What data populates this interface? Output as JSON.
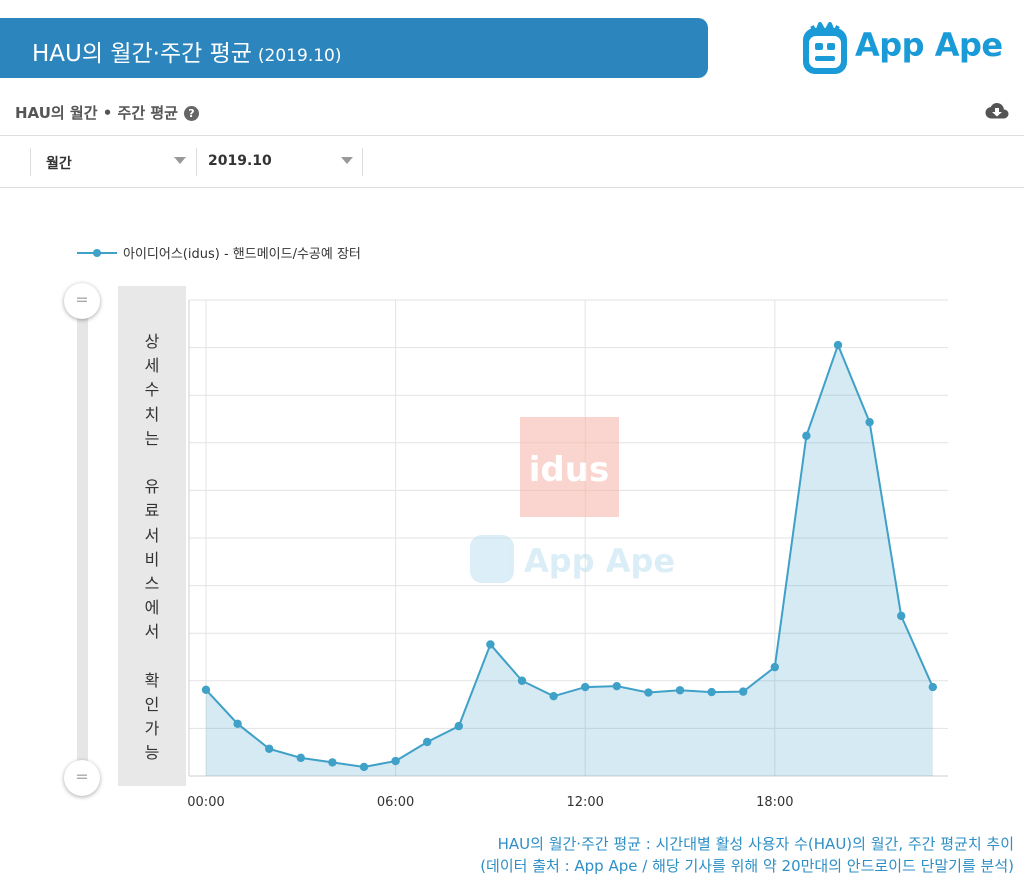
{
  "banner": {
    "title": "HAU의 월간·주간 평균",
    "subtitle": "(2019.10)"
  },
  "brand": {
    "name": "App Ape",
    "color": "#1a9ad6"
  },
  "section": {
    "title": "HAU의 월간 • 주간 평균",
    "help_icon": "?"
  },
  "filters": {
    "period": "월간",
    "month": "2019.10"
  },
  "legend": {
    "series_name": "아이디어스(idus) - 핸드메이드/수공예 장터"
  },
  "notice": {
    "text": "상\n세\n수\n치\n는\n\n유\n료\n서\n비\n스\n에\n서\n\n확\n인\n가\n능"
  },
  "watermark": {
    "app_logo": "idus",
    "brand": "App Ape"
  },
  "chart_data": {
    "type": "area",
    "x_tick_labels": [
      "00:00",
      "06:00",
      "12:00",
      "18:00"
    ],
    "x": [
      0,
      1,
      2,
      3,
      4,
      5,
      6,
      7,
      8,
      9,
      10,
      11,
      12,
      13,
      14,
      15,
      16,
      17,
      18,
      19,
      20,
      21,
      22,
      23
    ],
    "series": [
      {
        "name": "아이디어스(idus) - 핸드메이드/수공예 장터",
        "color": "#3fa0c8",
        "values": [
          19,
          11.5,
          6,
          4,
          3,
          2,
          3.3,
          7.5,
          11,
          29,
          21,
          17.6,
          19.6,
          19.8,
          18.4,
          18.9,
          18.5,
          18.6,
          24,
          75,
          95,
          78,
          35.3,
          19.6
        ]
      }
    ],
    "y_axis_values_hidden": true,
    "grid": true
  },
  "caption": {
    "line1": "HAU의 월간·주간 평균 : 시간대별 활성 사용자 수(HAU)의 월간, 주간 평균치 추이",
    "line2": "(데이터 출처 : App Ape / 해당 기사를 위해 약 20만대의 안드로이드 단말기를 분석)"
  }
}
